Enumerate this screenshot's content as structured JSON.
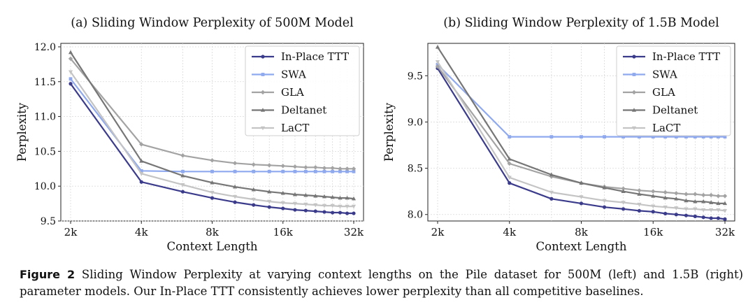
{
  "caption": {
    "label": "Figure 2",
    "text": "Sliding Window Perplexity at varying context lengths on the Pile dataset for 500M (left) and 1.5B (right) parameter models. Our In-Place TTT consistently achieves lower perplexity than all competitive baselines."
  },
  "colors": {
    "In-Place TTT": "#3b3b8c",
    "SWA": "#8fa9ef",
    "GLA": "#a3a3a3",
    "Deltanet": "#767676",
    "LaCT": "#c4c4c4"
  },
  "chart_data": [
    {
      "type": "line",
      "title": "(a) Sliding Window Perplexity of 500M Model",
      "xlabel": "Context Length",
      "ylabel": "Perplexity",
      "x_scale": "log2",
      "x_ticks": [
        "2k",
        "4k",
        "8k",
        "16k",
        "32k"
      ],
      "y_ticks": [
        9.5,
        10.0,
        10.5,
        11.0,
        11.5,
        12.0
      ],
      "ylim": [
        9.5,
        12.05
      ],
      "grid": true,
      "legend": "top-right",
      "x": [
        2,
        4,
        6,
        8,
        10,
        12,
        14,
        16,
        18,
        20,
        22,
        24,
        26,
        28,
        30,
        32
      ],
      "series": [
        {
          "name": "In-Place TTT",
          "marker": "circle",
          "values": [
            11.47,
            10.06,
            9.92,
            9.83,
            9.77,
            9.73,
            9.7,
            9.68,
            9.66,
            9.65,
            9.64,
            9.63,
            9.62,
            9.62,
            9.61,
            9.61
          ]
        },
        {
          "name": "SWA",
          "marker": "square",
          "values": [
            11.54,
            10.22,
            10.21,
            10.21,
            10.21,
            10.21,
            10.21,
            10.21,
            10.21,
            10.21,
            10.21,
            10.21,
            10.21,
            10.21,
            10.21,
            10.21
          ]
        },
        {
          "name": "GLA",
          "marker": "diamond",
          "values": [
            11.83,
            10.6,
            10.44,
            10.37,
            10.33,
            10.31,
            10.3,
            10.29,
            10.28,
            10.27,
            10.27,
            10.26,
            10.26,
            10.25,
            10.25,
            10.25
          ]
        },
        {
          "name": "Deltanet",
          "marker": "triangle",
          "values": [
            11.92,
            10.36,
            10.15,
            10.05,
            9.99,
            9.95,
            9.92,
            9.9,
            9.88,
            9.87,
            9.86,
            9.85,
            9.84,
            9.83,
            9.83,
            9.82
          ]
        },
        {
          "name": "LaCT",
          "marker": "triangle-down",
          "values": [
            11.64,
            10.18,
            10.02,
            9.91,
            9.85,
            9.81,
            9.78,
            9.76,
            9.75,
            9.74,
            9.73,
            9.72,
            9.72,
            9.71,
            9.71,
            9.71
          ]
        }
      ]
    },
    {
      "type": "line",
      "title": "(b) Sliding Window Perplexity of 1.5B Model",
      "xlabel": "Context Length",
      "ylabel": "Perplexity",
      "x_scale": "log2",
      "x_ticks": [
        "2k",
        "4k",
        "8k",
        "16k",
        "32k"
      ],
      "y_ticks": [
        8.0,
        8.5,
        9.0,
        9.5
      ],
      "ylim": [
        7.93,
        9.85
      ],
      "grid": true,
      "legend": "top-right",
      "x": [
        2,
        4,
        6,
        8,
        10,
        12,
        14,
        16,
        18,
        20,
        22,
        24,
        26,
        28,
        30,
        32
      ],
      "series": [
        {
          "name": "In-Place TTT",
          "marker": "circle",
          "values": [
            9.58,
            8.34,
            8.17,
            8.12,
            8.08,
            8.06,
            8.04,
            8.03,
            8.01,
            8.0,
            7.99,
            7.98,
            7.97,
            7.96,
            7.96,
            7.95
          ]
        },
        {
          "name": "SWA",
          "marker": "square",
          "values": [
            9.62,
            8.84,
            8.84,
            8.84,
            8.84,
            8.84,
            8.84,
            8.84,
            8.84,
            8.84,
            8.84,
            8.84,
            8.84,
            8.84,
            8.84,
            8.84
          ]
        },
        {
          "name": "GLA",
          "marker": "diamond",
          "values": [
            9.6,
            8.55,
            8.41,
            8.34,
            8.3,
            8.28,
            8.26,
            8.25,
            8.24,
            8.23,
            8.22,
            8.22,
            8.21,
            8.21,
            8.2,
            8.2
          ]
        },
        {
          "name": "Deltanet",
          "marker": "triangle",
          "values": [
            9.81,
            8.6,
            8.43,
            8.34,
            8.29,
            8.25,
            8.22,
            8.2,
            8.18,
            8.17,
            8.15,
            8.14,
            8.14,
            8.13,
            8.12,
            8.12
          ]
        },
        {
          "name": "LaCT",
          "marker": "triangle-down",
          "values": [
            9.65,
            8.4,
            8.24,
            8.19,
            8.15,
            8.13,
            8.11,
            8.09,
            8.08,
            8.07,
            8.06,
            8.06,
            8.05,
            8.05,
            8.05,
            8.04
          ]
        }
      ]
    }
  ]
}
